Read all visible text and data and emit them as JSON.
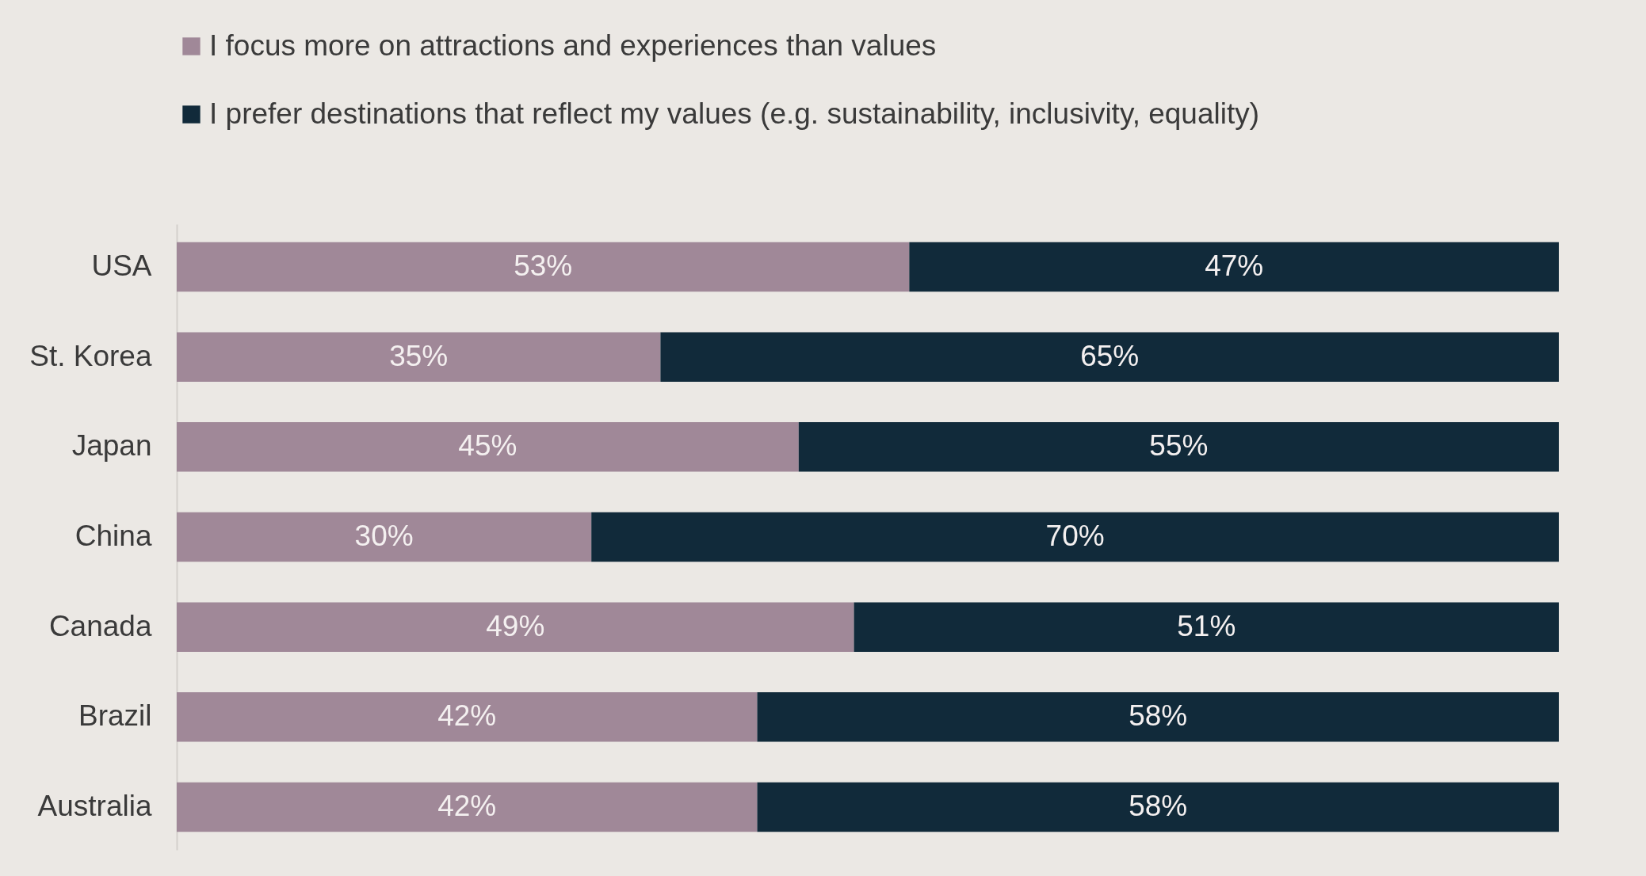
{
  "chart_data": {
    "type": "bar",
    "orientation": "horizontal",
    "stacked": true,
    "categories": [
      "USA",
      "St. Korea",
      "Japan",
      "China",
      "Canada",
      "Brazil",
      "Australia"
    ],
    "series": [
      {
        "name": "I focus more on attractions and experiences than values",
        "color": "#a08898",
        "values": [
          53,
          35,
          45,
          30,
          49,
          42,
          42
        ],
        "value_labels": [
          "53%",
          "35%",
          "45%",
          "30%",
          "49%",
          "42%",
          "42%"
        ]
      },
      {
        "name": "I prefer destinations that reflect my values (e.g. sustainability, inclusivity, equality)",
        "color": "#112a3a",
        "values": [
          47,
          65,
          55,
          70,
          51,
          58,
          58
        ],
        "value_labels": [
          "47%",
          "65%",
          "55%",
          "70%",
          "51%",
          "58%",
          "58%"
        ]
      }
    ],
    "legend": "top",
    "tick_labels": "y"
  }
}
